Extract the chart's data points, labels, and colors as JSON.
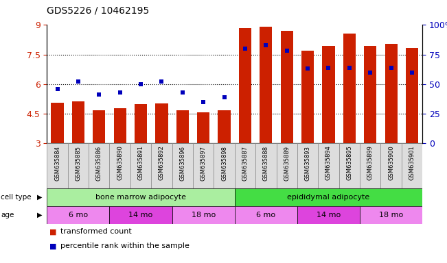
{
  "title": "GDS5226 / 10462195",
  "samples": [
    "GSM635884",
    "GSM635885",
    "GSM635886",
    "GSM635890",
    "GSM635891",
    "GSM635892",
    "GSM635896",
    "GSM635897",
    "GSM635898",
    "GSM635887",
    "GSM635888",
    "GSM635889",
    "GSM635893",
    "GSM635894",
    "GSM635895",
    "GSM635899",
    "GSM635900",
    "GSM635901"
  ],
  "bar_values": [
    5.05,
    5.12,
    4.68,
    4.78,
    4.98,
    5.04,
    4.68,
    4.58,
    4.68,
    8.85,
    8.9,
    8.72,
    7.68,
    7.95,
    8.55,
    7.95,
    8.05,
    7.82
  ],
  "dot_values_pct": [
    46,
    52,
    41,
    43,
    50,
    52,
    43,
    35,
    39,
    80,
    83,
    78,
    63,
    64,
    64,
    60,
    64,
    60
  ],
  "ylim_left": [
    3,
    9
  ],
  "ylim_right": [
    0,
    100
  ],
  "yticks_left": [
    3,
    4.5,
    6,
    7.5,
    9
  ],
  "yticks_right": [
    0,
    25,
    50,
    75,
    100
  ],
  "bar_color": "#CC2000",
  "dot_color": "#0000BB",
  "cell_type_groups": [
    {
      "label": "bone marrow adipocyte",
      "start": 0,
      "end": 8,
      "color": "#AAEEA0"
    },
    {
      "label": "epididymal adipocyte",
      "start": 9,
      "end": 17,
      "color": "#44DD44"
    }
  ],
  "age_groups": [
    {
      "label": "6 mo",
      "start": 0,
      "end": 2,
      "color": "#EE88EE"
    },
    {
      "label": "14 mo",
      "start": 3,
      "end": 5,
      "color": "#DD44DD"
    },
    {
      "label": "18 mo",
      "start": 6,
      "end": 8,
      "color": "#EE88EE"
    },
    {
      "label": "6 mo",
      "start": 9,
      "end": 11,
      "color": "#EE88EE"
    },
    {
      "label": "14 mo",
      "start": 12,
      "end": 14,
      "color": "#DD44DD"
    },
    {
      "label": "18 mo",
      "start": 15,
      "end": 17,
      "color": "#EE88EE"
    }
  ],
  "legend_labels": [
    "transformed count",
    "percentile rank within the sample"
  ],
  "cell_type_label": "cell type",
  "age_label": "age",
  "background_color": "#FFFFFF",
  "axis_color_left": "#CC2000",
  "axis_color_right": "#0000BB",
  "label_bg_color": "#DDDDDD",
  "sample_cell_border": "#888888"
}
